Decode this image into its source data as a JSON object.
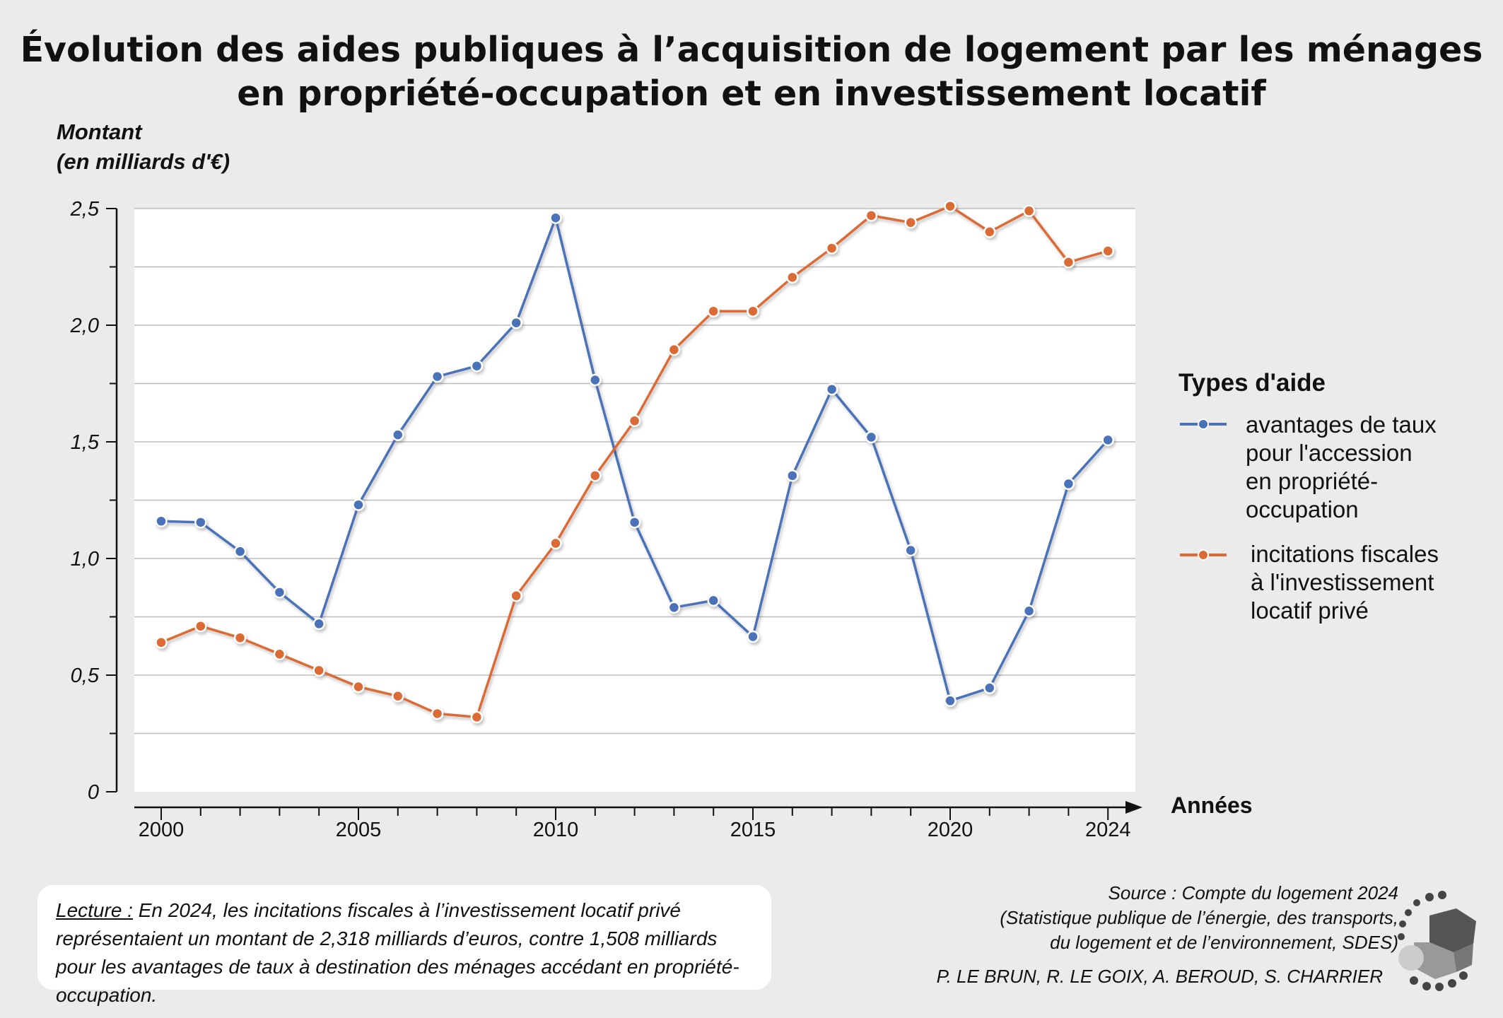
{
  "title_line1": "Évolution des aides publiques à l’acquisition de logement par les ménages",
  "title_line2": "en propriété-occupation et en investissement locatif",
  "ylabel_line1": "Montant",
  "ylabel_line2": "(en milliards d'€)",
  "legend": {
    "title": "Types d'aide",
    "series1": [
      "avantages de taux",
      "pour l'accession",
      "en propriété-",
      "occupation"
    ],
    "series2": [
      "incitations fiscales",
      "à l'investissement",
      "locatif privé"
    ]
  },
  "lecture": {
    "label": "Lecture :",
    "text": " En 2024, les incitations fiscales à l’investissement locatif privé représentaient un montant de 2,318 milliards d’euros, contre 1,508 milliards pour les avantages de taux à destination des ménages accédant en propriété-occupation."
  },
  "source": {
    "line1": "Source : Compte du logement 2024",
    "line2": "(Statistique publique de l’énergie, des transports,",
    "line3": "du logement et de l’environnement, SDES)"
  },
  "authors": "P. LE BRUN, R. LE GOIX, A. BEROUD, S. CHARRIER",
  "chart_data": {
    "type": "line",
    "xlabel": "Années",
    "ylabel": "Montant (en milliards d'€)",
    "x": [
      2000,
      2001,
      2002,
      2003,
      2004,
      2005,
      2006,
      2007,
      2008,
      2009,
      2010,
      2011,
      2012,
      2013,
      2014,
      2015,
      2016,
      2017,
      2018,
      2019,
      2020,
      2021,
      2022,
      2023,
      2024
    ],
    "x_tick_labels": [
      "2000",
      "2005",
      "2010",
      "2015",
      "2020",
      "2024"
    ],
    "x_tick_values": [
      2000,
      2005,
      2010,
      2015,
      2020,
      2024
    ],
    "y_tick_labels": [
      "0",
      "0,5",
      "1,0",
      "1,5",
      "2,0",
      "2,5"
    ],
    "y_tick_values": [
      0,
      0.5,
      1.0,
      1.5,
      2.0,
      2.5
    ],
    "ylim": [
      0,
      2.5
    ],
    "grid": true,
    "legend_position": "right",
    "series": [
      {
        "name": "avantages de taux pour l'accession en propriété-occupation",
        "color": "#4a72b8",
        "values": [
          1.16,
          1.155,
          1.03,
          0.855,
          0.72,
          1.23,
          1.53,
          1.78,
          1.825,
          2.01,
          2.46,
          1.765,
          1.155,
          0.79,
          0.82,
          0.665,
          1.355,
          1.725,
          1.52,
          1.035,
          0.39,
          0.445,
          0.775,
          1.32,
          1.508
        ]
      },
      {
        "name": "incitations fiscales à l'investissement locatif privé",
        "color": "#dc6a35",
        "values": [
          0.64,
          0.71,
          0.66,
          0.59,
          0.52,
          0.45,
          0.41,
          0.335,
          0.32,
          0.84,
          1.065,
          1.355,
          1.59,
          1.895,
          2.06,
          2.06,
          2.205,
          2.33,
          2.47,
          2.44,
          2.51,
          2.4,
          2.49,
          2.27,
          2.318
        ]
      }
    ]
  }
}
